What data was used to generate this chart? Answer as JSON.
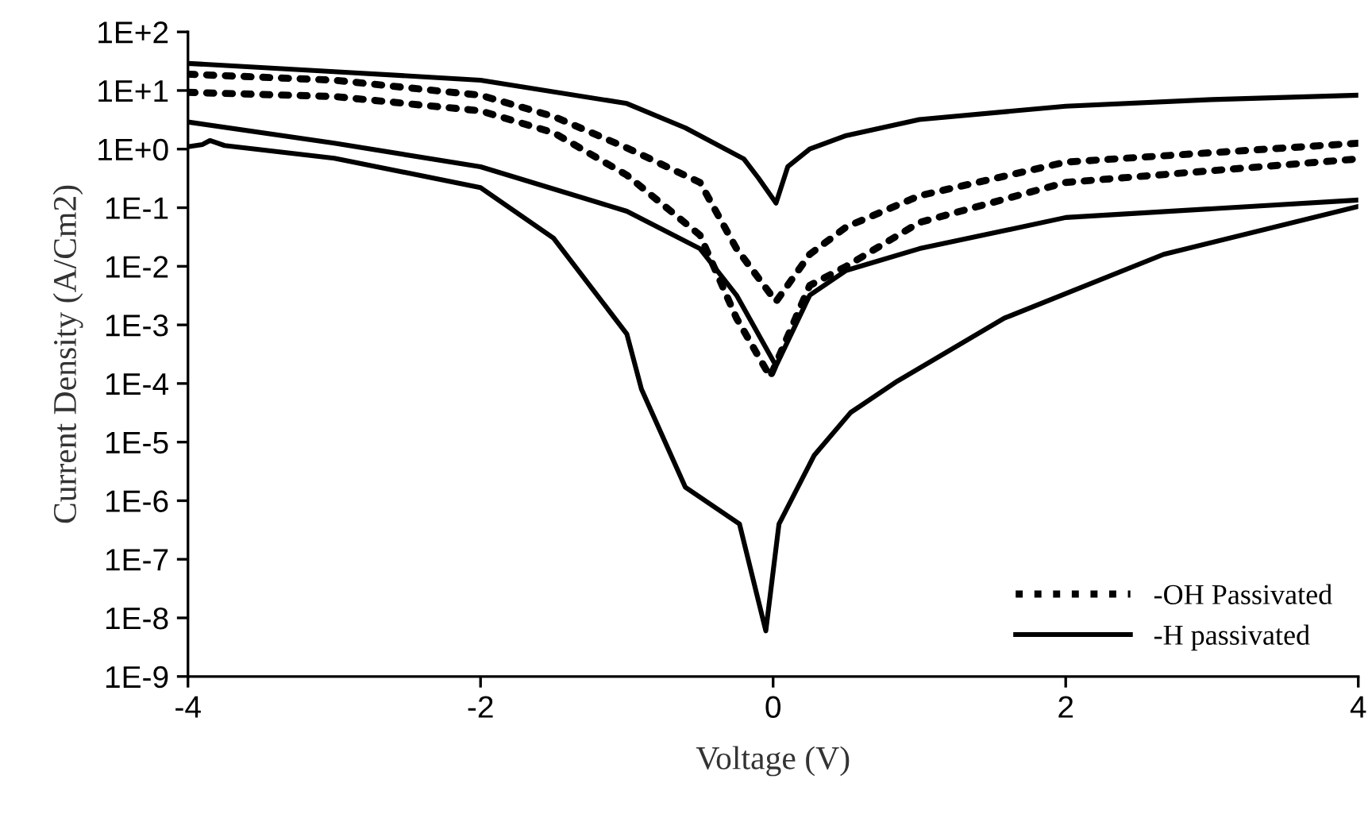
{
  "chart_data": {
    "type": "line",
    "xlabel": "Voltage (V)",
    "ylabel": "Current Density (A/Cm2)",
    "log": "y",
    "xlim": [
      -4,
      4
    ],
    "xticks": [
      -4,
      -2,
      0,
      2,
      4
    ],
    "ylim": [
      1e-09,
      100
    ],
    "yticks": [
      {
        "value": 1e-09,
        "label": "1E-9"
      },
      {
        "value": 1e-08,
        "label": "1E-8"
      },
      {
        "value": 1e-07,
        "label": "1E-7"
      },
      {
        "value": 1e-06,
        "label": "1E-6"
      },
      {
        "value": 1e-05,
        "label": "1E-5"
      },
      {
        "value": 0.0001,
        "label": "1E-4"
      },
      {
        "value": 0.001,
        "label": "1E-3"
      },
      {
        "value": 0.01,
        "label": "1E-2"
      },
      {
        "value": 0.1,
        "label": "1E-1"
      },
      {
        "value": 1,
        "label": "1E+0"
      },
      {
        "value": 10,
        "label": "1E+1"
      },
      {
        "value": 100,
        "label": "1E+2"
      }
    ],
    "grid": false,
    "legend": "bottom right",
    "marker": "none",
    "series": [
      {
        "name": "-OH Passivated",
        "color": "#000000",
        "line_style": "dotted",
        "x": [
          -4,
          -3,
          -2,
          -1.5,
          -1,
          -0.5,
          -0.25,
          0.02,
          0.25,
          0.5,
          1,
          2,
          4
        ],
        "values": [
          19,
          15,
          8.3,
          3.6,
          1.05,
          0.27,
          0.02,
          0.0025,
          0.016,
          0.047,
          0.16,
          0.6,
          1.26
        ]
      },
      {
        "color": "#000000",
        "line_style": "dotted",
        "x": [
          -4,
          -3,
          -2,
          -1.5,
          -1,
          -0.5,
          -0.25,
          -0.02,
          0.25,
          0.5,
          1,
          2,
          4
        ],
        "values": [
          9.3,
          7.9,
          4.5,
          1.9,
          0.36,
          0.034,
          0.0013,
          0.00013,
          0.0047,
          0.01,
          0.056,
          0.27,
          0.68
        ]
      },
      {
        "name": "-H passivated",
        "color": "#000000",
        "line_style": "solid",
        "x": [
          -4,
          -3,
          -2,
          -1,
          -0.6,
          -0.2,
          -0.1,
          0.02,
          0.1,
          0.25,
          0.5,
          1,
          2,
          3,
          4
        ],
        "values": [
          29,
          21,
          15,
          6,
          2.3,
          0.68,
          0.32,
          0.12,
          0.5,
          1.0,
          1.7,
          3.2,
          5.4,
          7,
          8.3
        ]
      },
      {
        "color": "#000000",
        "line_style": "solid",
        "x": [
          -4,
          -3,
          -2,
          -1,
          -0.5,
          -0.25,
          0.02,
          0.25,
          0.5,
          1,
          2,
          4
        ],
        "values": [
          2.9,
          1.26,
          0.5,
          0.087,
          0.02,
          0.0032,
          0.0002,
          0.0032,
          0.0085,
          0.02,
          0.068,
          0.135
        ]
      },
      {
        "color": "#000000",
        "line_style": "solid",
        "x": [
          -4,
          -3.9,
          -3.85,
          -3.75,
          -3,
          -2,
          -1.5,
          -1,
          -0.9,
          -0.6,
          -0.23,
          -0.05,
          0.04,
          0.28,
          0.53,
          0.85,
          1.58,
          2.67,
          4
        ],
        "values": [
          1.1,
          1.2,
          1.4,
          1.15,
          0.7,
          0.22,
          0.03,
          0.0007,
          8e-05,
          1.7e-06,
          4e-07,
          6e-09,
          4e-07,
          5.9e-06,
          3.2e-05,
          0.00011,
          0.0013,
          0.016,
          0.105
        ]
      }
    ]
  }
}
